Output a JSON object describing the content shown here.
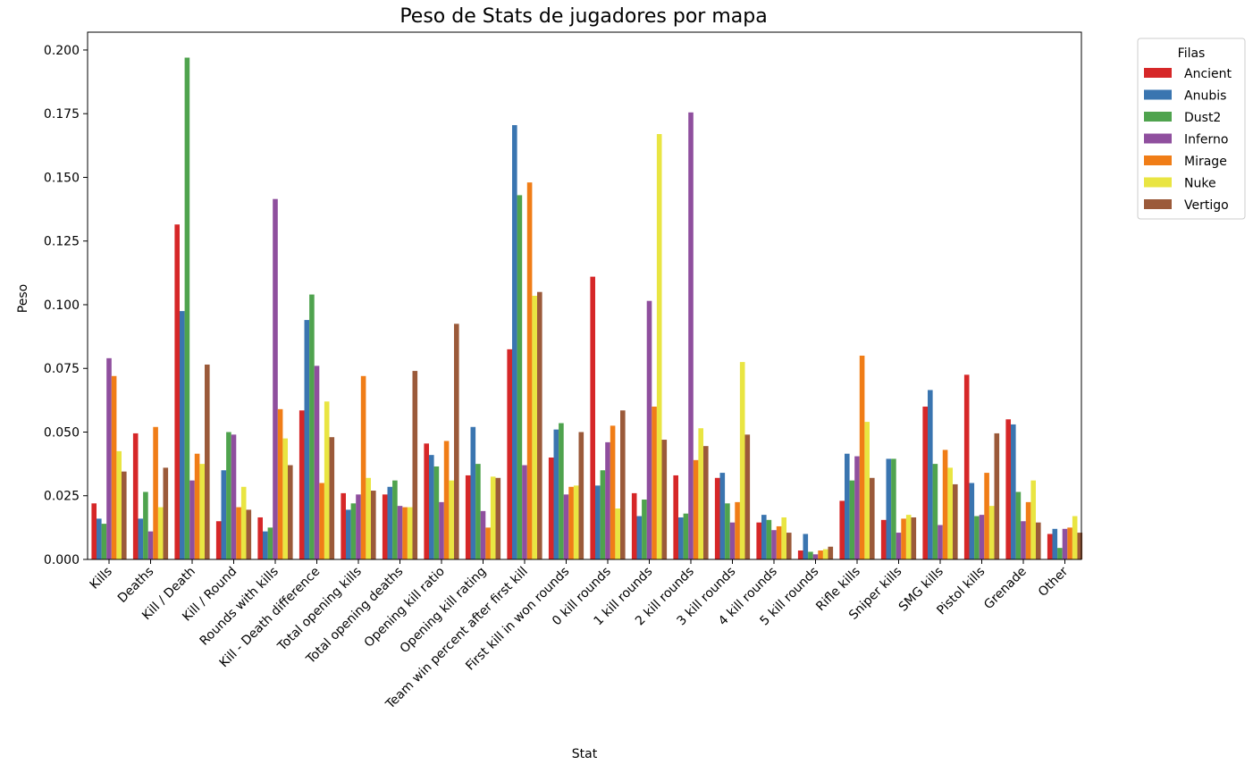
{
  "chart_data": {
    "type": "bar",
    "title": "Peso de Stats de jugadores por mapa",
    "xlabel": "Stat",
    "ylabel": "Peso",
    "ylim": [
      0,
      0.207
    ],
    "yticks": [
      "0.000",
      "0.025",
      "0.050",
      "0.075",
      "0.100",
      "0.125",
      "0.150",
      "0.175",
      "0.200"
    ],
    "grid": false,
    "legend": {
      "title": "Filas",
      "position": "outside-top-right"
    },
    "categories": [
      "Kills",
      "Deaths",
      "Kill / Death",
      "Kill / Round",
      "Rounds with kills",
      "Kill - Death difference",
      "Total opening kills",
      "Total opening deaths",
      "Opening kill ratio",
      "Opening kill rating",
      "Team win percent after first kill",
      "First kill in won rounds",
      "0 kill rounds",
      "1 kill rounds",
      "2 kill rounds",
      "3 kill rounds",
      "4 kill rounds",
      "5 kill rounds",
      "Rifle kills",
      "Sniper kills",
      "SMG kills",
      "Pistol kills",
      "Grenade",
      "Other"
    ],
    "series": [
      {
        "name": "Ancient",
        "color": "#d62728",
        "values": [
          0.022,
          0.0495,
          0.1315,
          0.015,
          0.0165,
          0.0585,
          0.026,
          0.0255,
          0.0455,
          0.033,
          0.0825,
          0.04,
          0.111,
          0.026,
          0.033,
          0.032,
          0.0145,
          0.0035,
          0.023,
          0.0155,
          0.06,
          0.0725,
          0.055,
          0.01
        ]
      },
      {
        "name": "Anubis",
        "color": "#3a75b0",
        "values": [
          0.016,
          0.016,
          0.0975,
          0.035,
          0.011,
          0.094,
          0.0195,
          0.0285,
          0.041,
          0.052,
          0.1705,
          0.051,
          0.029,
          0.017,
          0.0165,
          0.034,
          0.0175,
          0.01,
          0.0415,
          0.0395,
          0.0665,
          0.03,
          0.053,
          0.012
        ]
      },
      {
        "name": "Dust2",
        "color": "#4fa34e",
        "values": [
          0.014,
          0.0265,
          0.197,
          0.05,
          0.0125,
          0.104,
          0.022,
          0.031,
          0.0365,
          0.0375,
          0.143,
          0.0535,
          0.035,
          0.0235,
          0.018,
          0.022,
          0.0155,
          0.003,
          0.031,
          0.0395,
          0.0375,
          0.017,
          0.0265,
          0.0045
        ]
      },
      {
        "name": "Inferno",
        "color": "#8f4f9e",
        "values": [
          0.079,
          0.011,
          0.031,
          0.049,
          0.1415,
          0.076,
          0.0255,
          0.021,
          0.0225,
          0.019,
          0.037,
          0.0255,
          0.046,
          0.1015,
          0.1755,
          0.0145,
          0.0115,
          0.002,
          0.0405,
          0.0105,
          0.0135,
          0.0175,
          0.015,
          0.012
        ]
      },
      {
        "name": "Mirage",
        "color": "#f07d17",
        "values": [
          0.072,
          0.052,
          0.0415,
          0.0205,
          0.059,
          0.03,
          0.072,
          0.0205,
          0.0465,
          0.0125,
          0.148,
          0.0285,
          0.0525,
          0.06,
          0.039,
          0.0225,
          0.013,
          0.0035,
          0.08,
          0.016,
          0.043,
          0.034,
          0.0225,
          0.0125
        ]
      },
      {
        "name": "Nuke",
        "color": "#e9e542",
        "values": [
          0.0425,
          0.0205,
          0.0375,
          0.0285,
          0.0475,
          0.062,
          0.032,
          0.0205,
          0.031,
          0.0325,
          0.1035,
          0.029,
          0.02,
          0.167,
          0.0515,
          0.0775,
          0.0165,
          0.004,
          0.054,
          0.0175,
          0.036,
          0.021,
          0.031,
          0.017
        ]
      },
      {
        "name": "Vertigo",
        "color": "#9b5a3a",
        "values": [
          0.0345,
          0.036,
          0.0765,
          0.0195,
          0.037,
          0.048,
          0.027,
          0.074,
          0.0925,
          0.032,
          0.105,
          0.05,
          0.0585,
          0.047,
          0.0445,
          0.049,
          0.0105,
          0.005,
          0.032,
          0.0165,
          0.0295,
          0.0495,
          0.0145,
          0.0105
        ]
      }
    ]
  }
}
